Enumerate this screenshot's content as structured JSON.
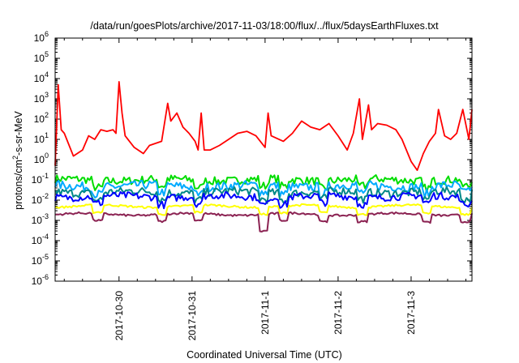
{
  "chart_data": {
    "type": "line",
    "title": "/data/run/goesPlots/archive/2017-11-03/18:00/flux/../flux/5daysEarthFluxes.txt",
    "xlabel": "Coordinated Universal Time (UTC)",
    "ylabel": {
      "prefix": "protons/cm",
      "sup": "2",
      "suffix": "-s-sr-MeV"
    },
    "yscale": "log",
    "ylim": [
      1e-06,
      1000000.0
    ],
    "yticks": [
      {
        "base": "10",
        "exp": "-6"
      },
      {
        "base": "10",
        "exp": "-5"
      },
      {
        "base": "10",
        "exp": "-4"
      },
      {
        "base": "10",
        "exp": "-3"
      },
      {
        "base": "10",
        "exp": "-2"
      },
      {
        "base": "10",
        "exp": "-1"
      },
      {
        "base": "10",
        "exp": "0"
      },
      {
        "base": "10",
        "exp": "1"
      },
      {
        "base": "10",
        "exp": "2"
      },
      {
        "base": "10",
        "exp": "3"
      },
      {
        "base": "10",
        "exp": "4"
      },
      {
        "base": "10",
        "exp": "5"
      },
      {
        "base": "10",
        "exp": "6"
      }
    ],
    "xlim": [
      "2017-10-29T03:00",
      "2017-11-03T20:00"
    ],
    "xticks": [
      "2017-10-30",
      "2017-10-31",
      "2017-11-1",
      "2017-11-2",
      "2017-11-3"
    ],
    "grid": false,
    "legend": "none",
    "series": [
      {
        "color": "#ff0000",
        "points": [
          [
            "2017-10-29T03:00",
            0.5
          ],
          [
            "2017-10-29T04:00",
            5000
          ],
          [
            "2017-10-29T05:00",
            30
          ],
          [
            "2017-10-29T06:00",
            20
          ],
          [
            "2017-10-29T09:00",
            1.5
          ],
          [
            "2017-10-29T12:00",
            3
          ],
          [
            "2017-10-29T14:00",
            15
          ],
          [
            "2017-10-29T16:00",
            10
          ],
          [
            "2017-10-29T18:00",
            30
          ],
          [
            "2017-10-29T20:00",
            25
          ],
          [
            "2017-10-29T22:00",
            30
          ],
          [
            "2017-10-29T23:00",
            20
          ],
          [
            "2017-10-30T00:00",
            7000
          ],
          [
            "2017-10-30T01:00",
            200
          ],
          [
            "2017-10-30T02:00",
            15
          ],
          [
            "2017-10-30T05:00",
            4
          ],
          [
            "2017-10-30T08:00",
            2
          ],
          [
            "2017-10-30T10:00",
            5
          ],
          [
            "2017-10-30T14:00",
            8
          ],
          [
            "2017-10-30T16:00",
            600
          ],
          [
            "2017-10-30T17:00",
            80
          ],
          [
            "2017-10-30T19:00",
            200
          ],
          [
            "2017-10-30T21:00",
            40
          ],
          [
            "2017-10-30T23:00",
            20
          ],
          [
            "2017-10-31T01:00",
            8
          ],
          [
            "2017-10-31T02:00",
            3
          ],
          [
            "2017-10-31T03:00",
            200
          ],
          [
            "2017-10-31T04:00",
            3
          ],
          [
            "2017-10-31T06:00",
            3
          ],
          [
            "2017-10-31T09:00",
            5
          ],
          [
            "2017-10-31T12:00",
            10
          ],
          [
            "2017-10-31T15:00",
            20
          ],
          [
            "2017-10-31T18:00",
            25
          ],
          [
            "2017-10-31T21:00",
            15
          ],
          [
            "2017-11-01T00:00",
            4
          ],
          [
            "2017-11-01T01:00",
            200
          ],
          [
            "2017-11-01T02:00",
            15
          ],
          [
            "2017-11-01T06:00",
            8
          ],
          [
            "2017-11-01T09:00",
            20
          ],
          [
            "2017-11-01T12:00",
            80
          ],
          [
            "2017-11-01T15:00",
            40
          ],
          [
            "2017-11-01T18:00",
            30
          ],
          [
            "2017-11-01T21:00",
            60
          ],
          [
            "2017-11-02T00:00",
            15
          ],
          [
            "2017-11-02T03:00",
            3
          ],
          [
            "2017-11-02T05:00",
            20
          ],
          [
            "2017-11-02T07:00",
            1000
          ],
          [
            "2017-11-02T08:00",
            10
          ],
          [
            "2017-11-02T10:00",
            500
          ],
          [
            "2017-11-02T11:00",
            30
          ],
          [
            "2017-11-02T13:00",
            60
          ],
          [
            "2017-11-02T16:00",
            50
          ],
          [
            "2017-11-02T19:00",
            30
          ],
          [
            "2017-11-02T21:00",
            10
          ],
          [
            "2017-11-03T00:00",
            0.8
          ],
          [
            "2017-11-03T02:00",
            0.3
          ],
          [
            "2017-11-03T04:00",
            2
          ],
          [
            "2017-11-03T06:00",
            8
          ],
          [
            "2017-11-03T08:00",
            20
          ],
          [
            "2017-11-03T09:00",
            300
          ],
          [
            "2017-11-03T11:00",
            15
          ],
          [
            "2017-11-03T13:00",
            10
          ],
          [
            "2017-11-03T15:00",
            20
          ],
          [
            "2017-11-03T17:00",
            300
          ],
          [
            "2017-11-03T19:00",
            10
          ],
          [
            "2017-11-03T20:00",
            300
          ]
        ]
      },
      {
        "color": "#00dd00",
        "base": 0.1,
        "amplitude": 0.2
      },
      {
        "color": "#00aaff",
        "base": 0.05,
        "amplitude": 0.22
      },
      {
        "color": "#008888",
        "base": 0.025,
        "amplitude": 0.2
      },
      {
        "color": "#0000ff",
        "base": 0.015,
        "amplitude": 0.18
      },
      {
        "color": "#ffff00",
        "base": 0.005,
        "amplitude": 0.05
      },
      {
        "color": "#8b2252",
        "base": 0.002,
        "amplitude": 0.05
      }
    ]
  }
}
